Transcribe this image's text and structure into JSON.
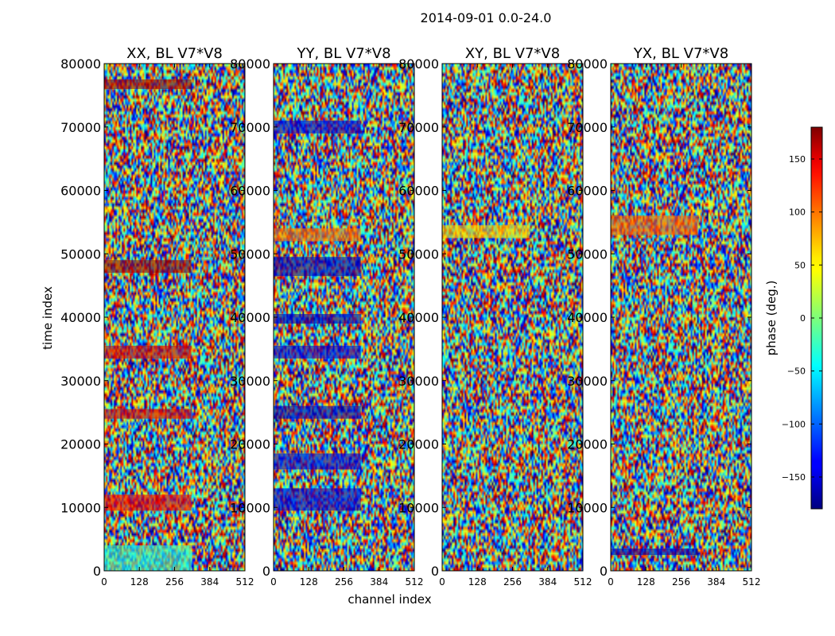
{
  "suptitle": "2014-09-01 0.0-24.0",
  "xlabel": "channel index",
  "ylabel": "time index",
  "colorbar": {
    "label": "phase (deg.)",
    "range": [
      -180,
      180
    ],
    "ticks": [
      150,
      100,
      50,
      0,
      -50,
      -100,
      -150
    ],
    "tick_labels": [
      "150",
      "100",
      "50",
      "0",
      "−50",
      "−100",
      "−150"
    ],
    "colormap": "jet"
  },
  "chart_data": [
    {
      "type": "heatmap",
      "title": "XX, BL V7*V8",
      "xlim": [
        0,
        512
      ],
      "ylim": [
        0,
        80000
      ],
      "xticks": [
        0,
        128,
        256,
        384,
        512
      ],
      "yticks": [
        0,
        10000,
        20000,
        30000,
        40000,
        50000,
        60000,
        70000,
        80000
      ],
      "value_range": [
        -180,
        180
      ],
      "phase_stripes": [
        {
          "start": 0,
          "end": 4000,
          "phase": -30
        },
        {
          "start": 9500,
          "end": 12000,
          "phase": 140
        },
        {
          "start": 24000,
          "end": 25500,
          "phase": 150
        },
        {
          "start": 33500,
          "end": 35500,
          "phase": 150
        },
        {
          "start": 47000,
          "end": 49000,
          "phase": 170
        },
        {
          "start": 76000,
          "end": 77500,
          "phase": 170
        }
      ]
    },
    {
      "type": "heatmap",
      "title": "YY, BL V7*V8",
      "xlim": [
        0,
        512
      ],
      "ylim": [
        0,
        80000
      ],
      "xticks": [
        0,
        128,
        256,
        384,
        512
      ],
      "yticks": [
        0,
        10000,
        20000,
        30000,
        40000,
        50000,
        60000,
        70000,
        80000
      ],
      "value_range": [
        -180,
        180
      ],
      "phase_stripes": [
        {
          "start": 9500,
          "end": 13000,
          "phase": -150
        },
        {
          "start": 16000,
          "end": 18500,
          "phase": -150
        },
        {
          "start": 24000,
          "end": 26000,
          "phase": -160
        },
        {
          "start": 33500,
          "end": 35500,
          "phase": -150
        },
        {
          "start": 39000,
          "end": 40500,
          "phase": -160
        },
        {
          "start": 46500,
          "end": 49500,
          "phase": -160
        },
        {
          "start": 52000,
          "end": 54000,
          "phase": 90
        },
        {
          "start": 69000,
          "end": 71000,
          "phase": -150
        }
      ]
    },
    {
      "type": "heatmap",
      "title": "XY, BL V7*V8",
      "xlim": [
        0,
        512
      ],
      "ylim": [
        0,
        80000
      ],
      "xticks": [
        0,
        128,
        256,
        384,
        512
      ],
      "yticks": [
        0,
        10000,
        20000,
        30000,
        40000,
        50000,
        60000,
        70000,
        80000
      ],
      "value_range": [
        -180,
        180
      ],
      "phase_stripes": [
        {
          "start": 52500,
          "end": 54500,
          "phase": 60
        }
      ]
    },
    {
      "type": "heatmap",
      "title": "YX, BL V7*V8",
      "xlim": [
        0,
        512
      ],
      "ylim": [
        0,
        80000
      ],
      "xticks": [
        0,
        128,
        256,
        384,
        512
      ],
      "yticks": [
        0,
        10000,
        20000,
        30000,
        40000,
        50000,
        60000,
        70000,
        80000
      ],
      "value_range": [
        -180,
        180
      ],
      "phase_stripes": [
        {
          "start": 2500,
          "end": 3500,
          "phase": -160
        },
        {
          "start": 53000,
          "end": 56000,
          "phase": 100
        }
      ]
    }
  ]
}
